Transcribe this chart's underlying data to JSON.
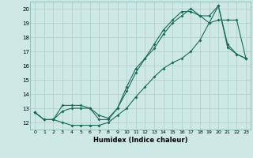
{
  "xlabel": "Humidex (Indice chaleur)",
  "bg_color": "#cde8e5",
  "grid_color": "#aacfcc",
  "line_color": "#1a6b5a",
  "xlim": [
    -0.5,
    23.5
  ],
  "ylim": [
    11.5,
    20.5
  ],
  "xticks": [
    0,
    1,
    2,
    3,
    4,
    5,
    6,
    7,
    8,
    9,
    10,
    11,
    12,
    13,
    14,
    15,
    16,
    17,
    18,
    19,
    20,
    21,
    22,
    23
  ],
  "yticks": [
    12,
    13,
    14,
    15,
    16,
    17,
    18,
    19,
    20
  ],
  "curve1_x": [
    0,
    1,
    2,
    3,
    4,
    5,
    6,
    7,
    8,
    9,
    10,
    11,
    12,
    13,
    14,
    15,
    16,
    17,
    18,
    19,
    20,
    21,
    22,
    23
  ],
  "curve1_y": [
    12.7,
    12.2,
    12.2,
    12.0,
    11.8,
    11.8,
    11.8,
    11.8,
    12.0,
    12.5,
    13.0,
    13.8,
    14.5,
    15.2,
    15.8,
    16.2,
    16.5,
    17.0,
    17.8,
    19.0,
    19.2,
    19.2,
    19.2,
    16.5
  ],
  "curve2_x": [
    0,
    1,
    2,
    3,
    4,
    5,
    6,
    7,
    8,
    9,
    10,
    11,
    12,
    13,
    14,
    15,
    16,
    17,
    18,
    19,
    20,
    21,
    22,
    23
  ],
  "curve2_y": [
    12.7,
    12.2,
    12.2,
    12.8,
    13.0,
    13.0,
    13.0,
    12.5,
    12.3,
    13.0,
    14.5,
    15.8,
    16.5,
    17.5,
    18.5,
    19.2,
    19.8,
    19.8,
    19.5,
    19.5,
    20.2,
    17.3,
    16.8,
    16.5
  ],
  "curve3_x": [
    0,
    1,
    2,
    3,
    4,
    5,
    6,
    7,
    8,
    9,
    10,
    11,
    12,
    13,
    14,
    15,
    16,
    17,
    18,
    19,
    20,
    21,
    22,
    23
  ],
  "curve3_y": [
    12.7,
    12.2,
    12.2,
    13.2,
    13.2,
    13.2,
    13.0,
    12.2,
    12.2,
    13.0,
    14.2,
    15.5,
    16.5,
    17.2,
    18.2,
    19.0,
    19.5,
    20.0,
    19.5,
    19.0,
    20.2,
    17.5,
    16.8,
    16.5
  ]
}
